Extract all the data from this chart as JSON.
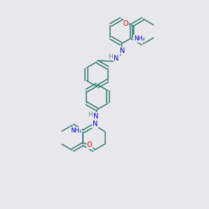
{
  "bg_color": "#e8e8ec",
  "bond_color": "#2d7a6e",
  "atom_colors": {
    "O": "#dd0000",
    "N": "#0000cc",
    "H": "#5a8a7a"
  },
  "figsize": [
    3.0,
    3.0
  ],
  "dpi": 100
}
